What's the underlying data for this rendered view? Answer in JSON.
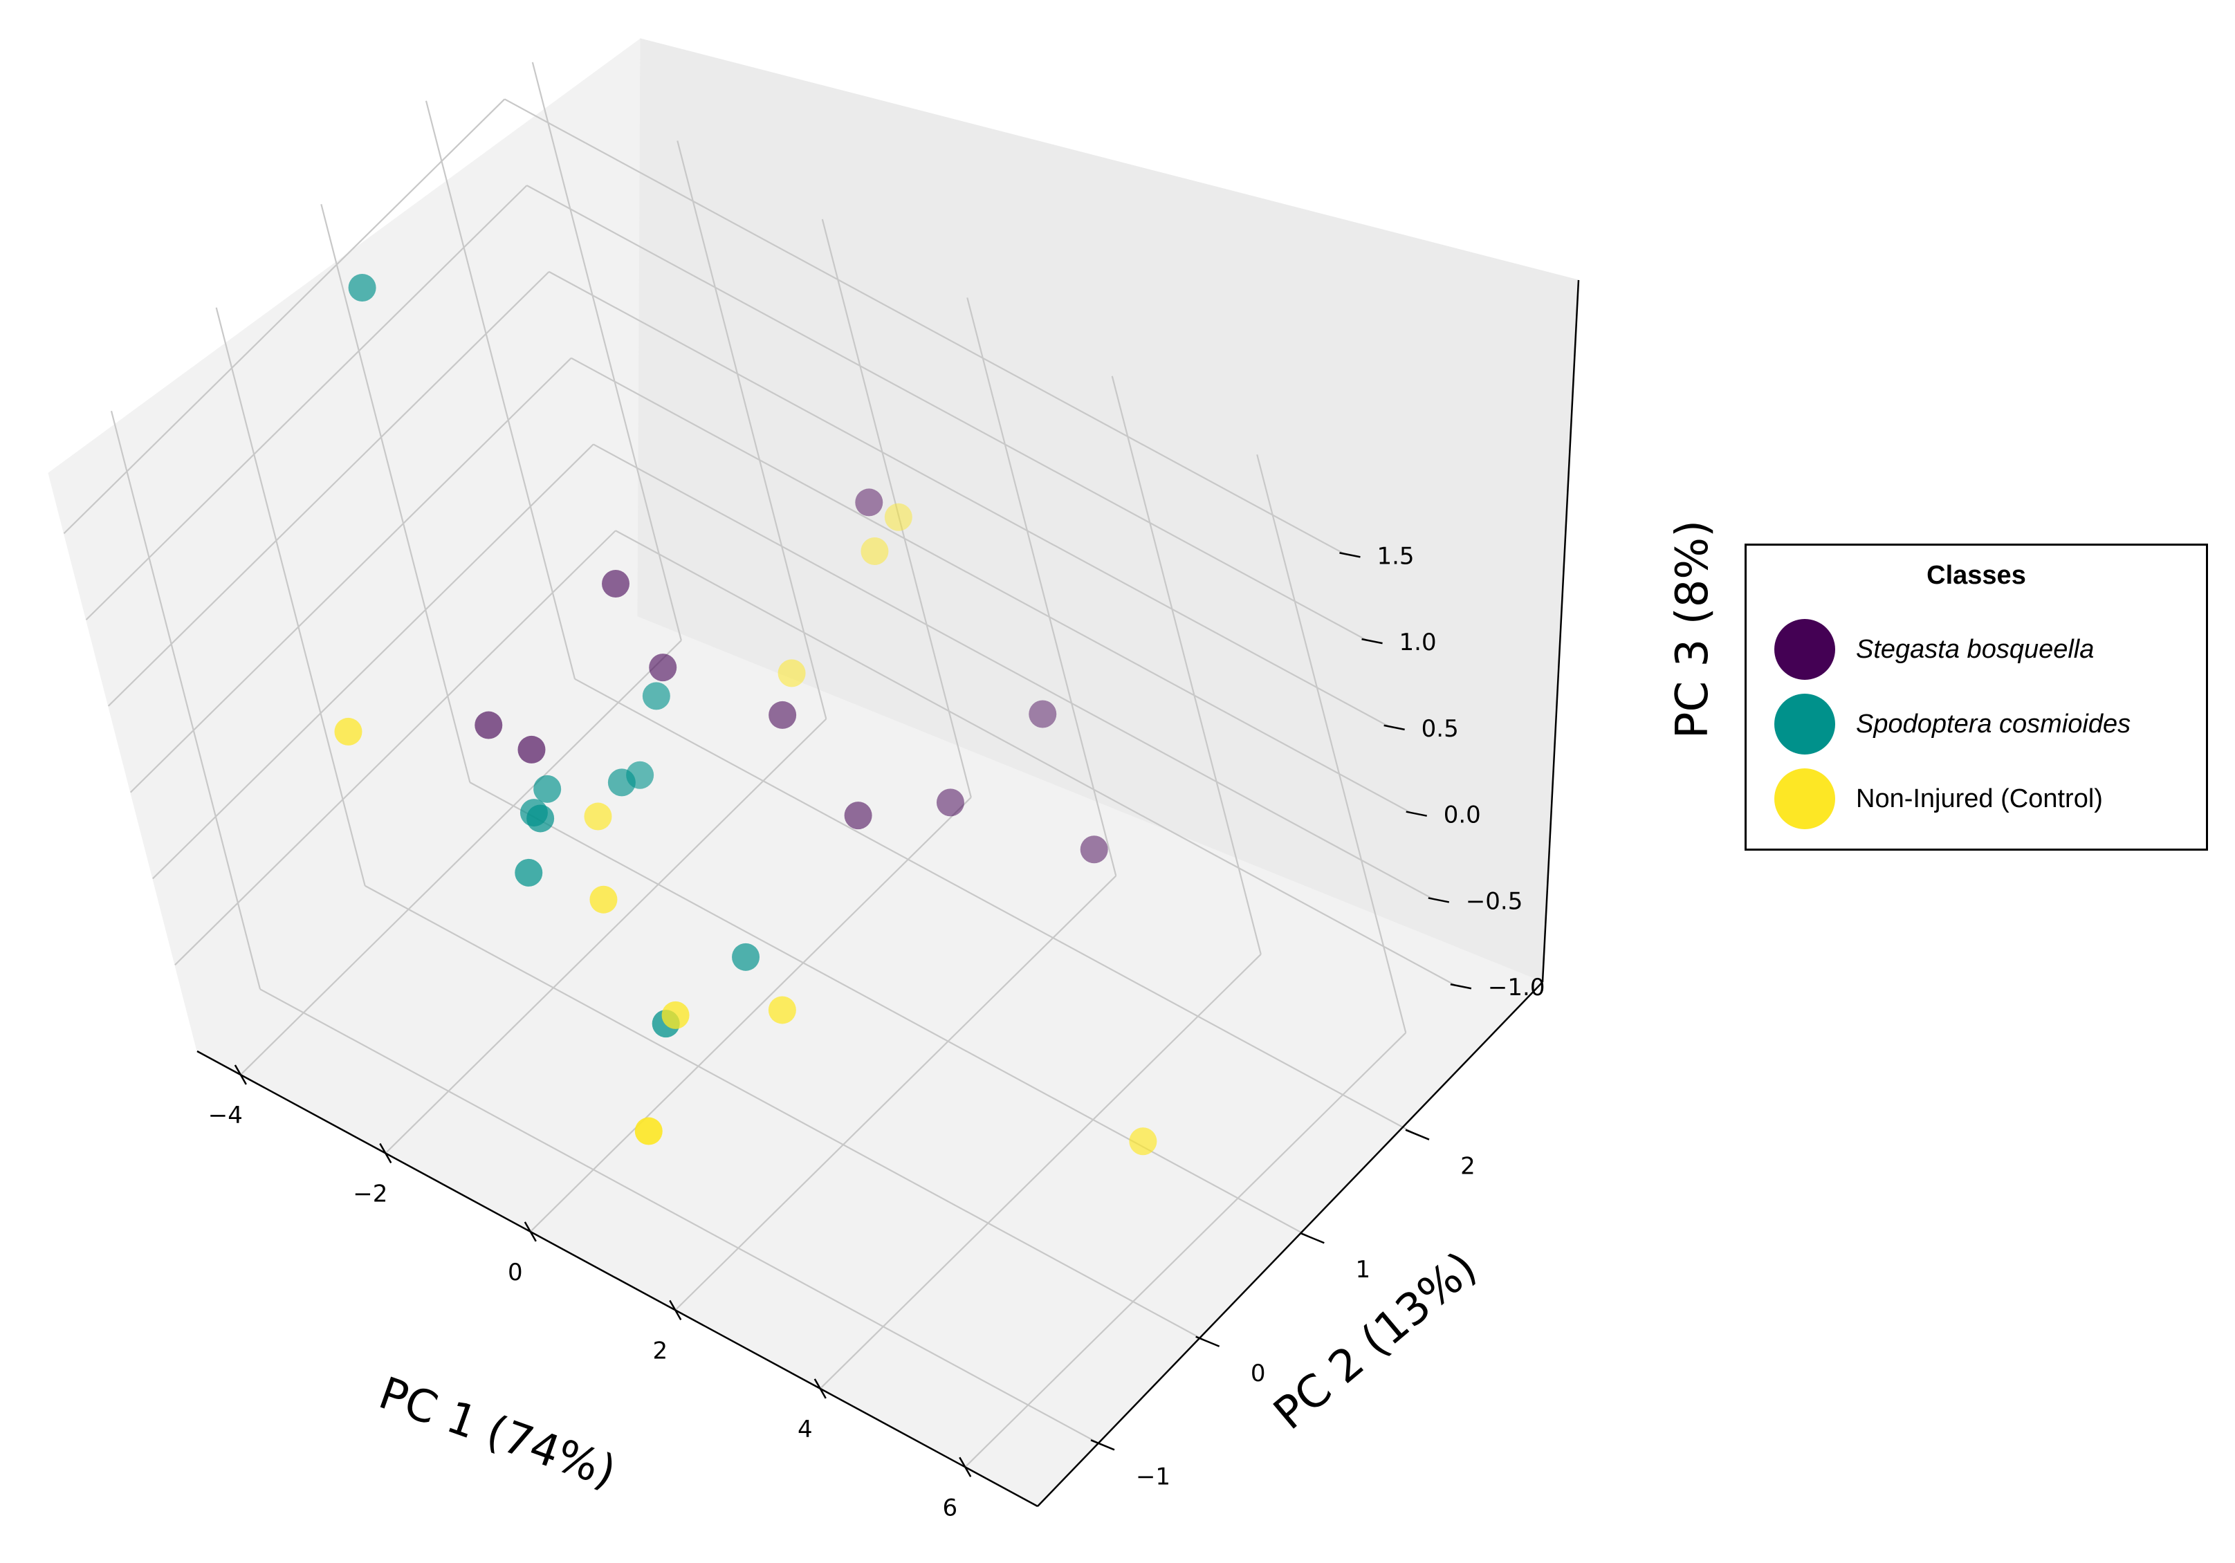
{
  "chart_data": {
    "type": "scatter",
    "projection": "3d",
    "x_axis": {
      "label": "PC 1 (74%)",
      "ticks": [
        "−4",
        "−2",
        "0",
        "2",
        "4",
        "6"
      ],
      "tick_values": [
        -4,
        -2,
        0,
        2,
        4,
        6
      ],
      "range": [
        -4.6,
        7.0
      ]
    },
    "y_axis": {
      "label": "PC 2 (13%)",
      "ticks": [
        "−1",
        "0",
        "1",
        "2"
      ],
      "tick_values": [
        -1,
        0,
        1,
        2
      ],
      "range": [
        -1.6,
        2.6
      ]
    },
    "z_axis": {
      "label": "PC 3 (8%)",
      "ticks": [
        "−1.0",
        "−0.5",
        "0.0",
        "0.5",
        "1.0",
        "1.5"
      ],
      "tick_values": [
        -1.0,
        -0.5,
        0.0,
        0.5,
        1.0,
        1.5
      ],
      "range": [
        -1.5,
        1.85
      ]
    },
    "grid": true,
    "legend": {
      "title": "Classes",
      "position": "right"
    },
    "series": [
      {
        "name": "Stegasta bosqueella",
        "italic": true,
        "color": "#440154",
        "points": [
          {
            "x": 1.9,
            "y": 1.5,
            "z": 1.3
          },
          {
            "x": 4.5,
            "y": 1.3,
            "z": 0.0
          },
          {
            "x": 3.6,
            "y": 1.6,
            "z": 0.4
          },
          {
            "x": 0.9,
            "y": 0.9,
            "z": 0.2
          },
          {
            "x": 2.6,
            "y": 1.2,
            "z": -0.1
          },
          {
            "x": 1.7,
            "y": 0.9,
            "z": -0.2
          },
          {
            "x": -0.6,
            "y": 0.6,
            "z": 0.8
          },
          {
            "x": -0.4,
            "y": 0.7,
            "z": 0.3
          },
          {
            "x": -2.0,
            "y": 0.3,
            "z": -0.3
          },
          {
            "x": -2.8,
            "y": 0.4,
            "z": -0.4
          }
        ]
      },
      {
        "name": "Spodoptera  cosmioides",
        "italic": true,
        "color": "#00918b",
        "points": [
          {
            "x": -2.6,
            "y": 0.2,
            "z": 2.3
          },
          {
            "x": -0.2,
            "y": 0.5,
            "z": 0.3
          },
          {
            "x": -0.9,
            "y": 0.4,
            "z": -0.3
          },
          {
            "x": -1.0,
            "y": 0.6,
            "z": -0.4
          },
          {
            "x": -1.7,
            "y": 0.2,
            "z": -0.4
          },
          {
            "x": -1.8,
            "y": 0.1,
            "z": -0.5
          },
          {
            "x": -1.3,
            "y": -0.1,
            "z": -0.3
          },
          {
            "x": -1.5,
            "y": -0.2,
            "z": -0.6
          },
          {
            "x": 1.0,
            "y": 0.1,
            "z": -0.7
          },
          {
            "x": 0.5,
            "y": -0.4,
            "z": -0.9
          }
        ]
      },
      {
        "name": "Non-Injured  (Control)",
        "italic": false,
        "color": "#fde725",
        "points": [
          {
            "x": 2.1,
            "y": 1.6,
            "z": 1.2
          },
          {
            "x": 2.0,
            "y": 1.4,
            "z": 1.1
          },
          {
            "x": 0.8,
            "y": 1.1,
            "z": 0.3
          },
          {
            "x": -3.6,
            "y": -0.3,
            "z": -0.2
          },
          {
            "x": -1.0,
            "y": 0.2,
            "z": -0.4
          },
          {
            "x": -0.2,
            "y": -0.3,
            "z": -0.4
          },
          {
            "x": 0.9,
            "y": -0.5,
            "z": -0.7
          },
          {
            "x": 2.0,
            "y": -0.2,
            "z": -0.6
          },
          {
            "x": 2.1,
            "y": -1.5,
            "z": -0.5
          },
          {
            "x": 6.4,
            "y": 0.2,
            "z": -0.6
          }
        ]
      }
    ]
  }
}
